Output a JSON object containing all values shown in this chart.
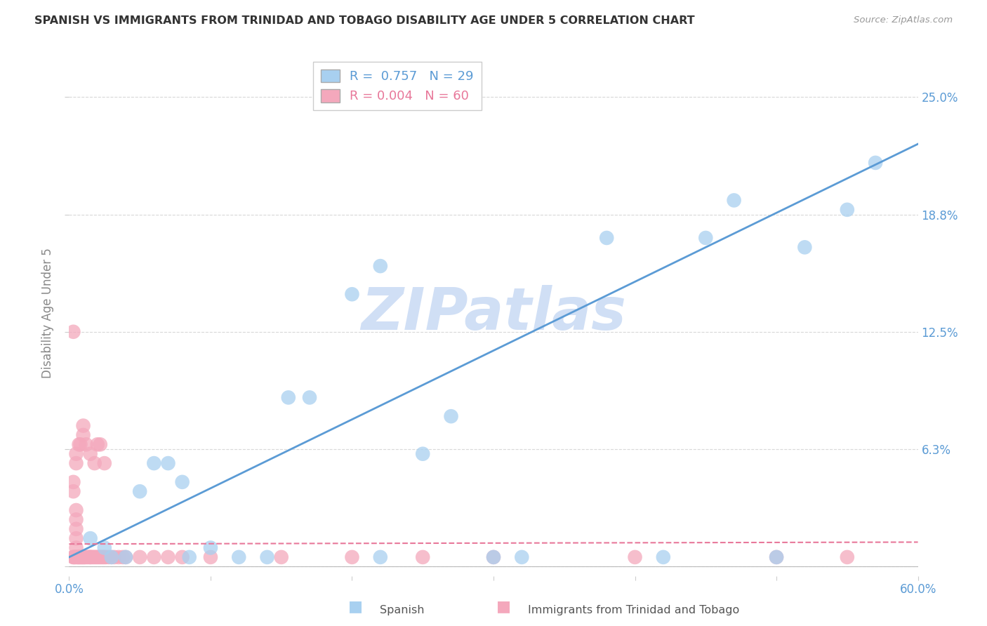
{
  "title": "SPANISH VS IMMIGRANTS FROM TRINIDAD AND TOBAGO DISABILITY AGE UNDER 5 CORRELATION CHART",
  "source": "Source: ZipAtlas.com",
  "ylabel": "Disability Age Under 5",
  "xlim": [
    0.0,
    0.6
  ],
  "ylim": [
    -0.005,
    0.275
  ],
  "ytick_positions": [
    0.0,
    0.0625,
    0.125,
    0.1875,
    0.25
  ],
  "ytick_labels": [
    "",
    "6.3%",
    "12.5%",
    "18.8%",
    "25.0%"
  ],
  "xtick_positions": [
    0.0,
    0.1,
    0.2,
    0.3,
    0.4,
    0.5,
    0.6
  ],
  "xtick_labels": [
    "0.0%",
    "",
    "",
    "",
    "",
    "",
    "60.0%"
  ],
  "blue_R": 0.757,
  "blue_N": 29,
  "pink_R": 0.004,
  "pink_N": 60,
  "blue_color": "#a8d0f0",
  "pink_color": "#f4a8bc",
  "blue_line_color": "#5b9bd5",
  "pink_line_color": "#e8789a",
  "legend_blue_label": "Spanish",
  "legend_pink_label": "Immigrants from Trinidad and Tobago",
  "watermark": "ZIPatlas",
  "watermark_color": "#d0dff5",
  "background_color": "#ffffff",
  "grid_color": "#d8d8d8",
  "blue_line_x": [
    0.0,
    0.6
  ],
  "blue_line_y": [
    0.005,
    0.225
  ],
  "pink_line_x": [
    0.0,
    0.6
  ],
  "pink_line_y": [
    0.012,
    0.013
  ],
  "blue_scatter_x": [
    0.015,
    0.025,
    0.03,
    0.04,
    0.05,
    0.06,
    0.07,
    0.08,
    0.085,
    0.1,
    0.12,
    0.14,
    0.155,
    0.17,
    0.22,
    0.25,
    0.27,
    0.32,
    0.38,
    0.42,
    0.45,
    0.47,
    0.5,
    0.52,
    0.55,
    0.57,
    0.22,
    0.3,
    0.2
  ],
  "blue_scatter_y": [
    0.015,
    0.01,
    0.005,
    0.005,
    0.04,
    0.055,
    0.055,
    0.045,
    0.005,
    0.01,
    0.005,
    0.005,
    0.09,
    0.09,
    0.005,
    0.06,
    0.08,
    0.005,
    0.175,
    0.005,
    0.175,
    0.195,
    0.005,
    0.17,
    0.19,
    0.215,
    0.16,
    0.005,
    0.145
  ],
  "pink_scatter_x": [
    0.003,
    0.003,
    0.004,
    0.004,
    0.005,
    0.005,
    0.005,
    0.005,
    0.005,
    0.005,
    0.006,
    0.006,
    0.007,
    0.007,
    0.008,
    0.008,
    0.009,
    0.009,
    0.01,
    0.01,
    0.011,
    0.011,
    0.012,
    0.013,
    0.014,
    0.015,
    0.015,
    0.016,
    0.017,
    0.018,
    0.019,
    0.02,
    0.021,
    0.022,
    0.023,
    0.024,
    0.025,
    0.026,
    0.028,
    0.03,
    0.032,
    0.035,
    0.038,
    0.04,
    0.05,
    0.06,
    0.07,
    0.08,
    0.1,
    0.15,
    0.2,
    0.25,
    0.3,
    0.4,
    0.5,
    0.55,
    0.003,
    0.005,
    0.007,
    0.01
  ],
  "pink_scatter_y": [
    0.005,
    0.005,
    0.005,
    0.005,
    0.005,
    0.01,
    0.015,
    0.02,
    0.025,
    0.03,
    0.005,
    0.005,
    0.005,
    0.005,
    0.005,
    0.005,
    0.005,
    0.005,
    0.005,
    0.005,
    0.005,
    0.005,
    0.005,
    0.005,
    0.005,
    0.005,
    0.005,
    0.005,
    0.005,
    0.005,
    0.005,
    0.005,
    0.005,
    0.005,
    0.005,
    0.005,
    0.005,
    0.005,
    0.005,
    0.005,
    0.005,
    0.005,
    0.005,
    0.005,
    0.005,
    0.005,
    0.005,
    0.005,
    0.005,
    0.005,
    0.005,
    0.005,
    0.005,
    0.005,
    0.005,
    0.005,
    0.04,
    0.055,
    0.065,
    0.075
  ],
  "pink_high_x": [
    0.003,
    0.005,
    0.008,
    0.01,
    0.012,
    0.015,
    0.018,
    0.02,
    0.022,
    0.025
  ],
  "pink_high_y": [
    0.045,
    0.06,
    0.065,
    0.07,
    0.065,
    0.06,
    0.055,
    0.065,
    0.065,
    0.055
  ],
  "pink_single_high_x": [
    0.003
  ],
  "pink_single_high_y": [
    0.125
  ]
}
